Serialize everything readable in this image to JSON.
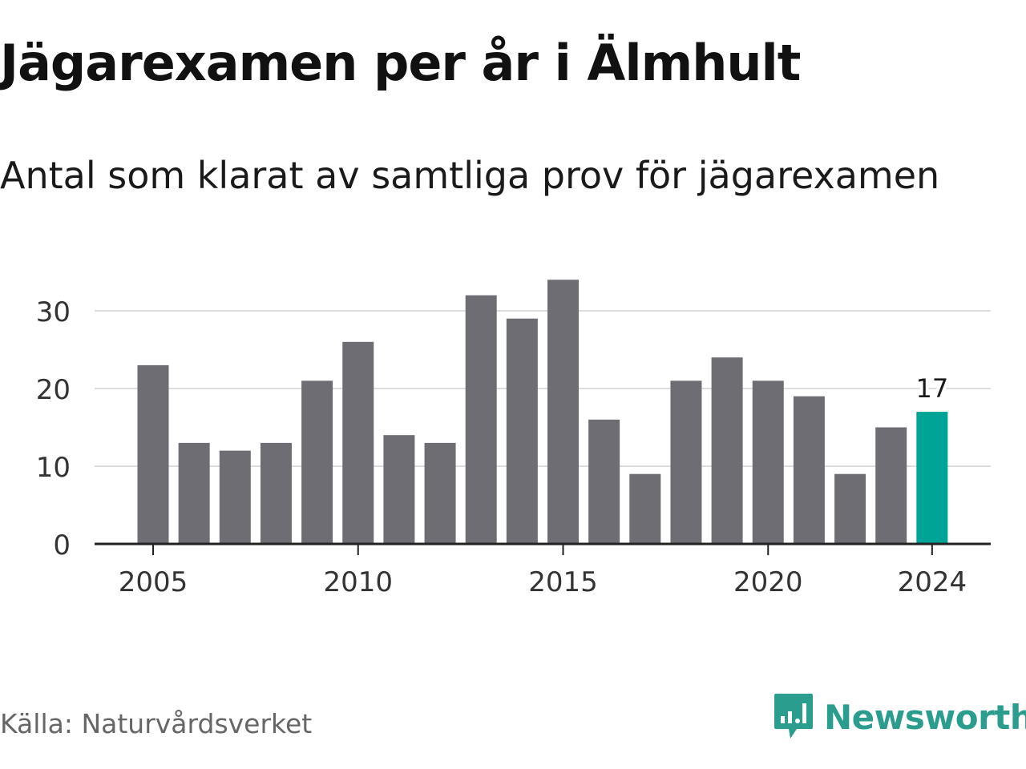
{
  "title": "Jägarexamen per år i Älmhult",
  "subtitle": "Antal som klarat av samtliga prov för jägarexamen",
  "source": "Källa: Naturvårdsverket",
  "brand": "Newsworthy",
  "colors": {
    "bar": "#6e6d74",
    "highlight": "#00a497",
    "grid": "#dddddd",
    "axis": "#222222",
    "brand": "#2a9d8f"
  },
  "chart_data": {
    "type": "bar",
    "x": [
      2005,
      2006,
      2007,
      2008,
      2009,
      2010,
      2011,
      2012,
      2013,
      2014,
      2015,
      2016,
      2017,
      2018,
      2019,
      2020,
      2021,
      2022,
      2023,
      2024
    ],
    "values": [
      23,
      13,
      12,
      13,
      21,
      26,
      14,
      13,
      32,
      29,
      34,
      16,
      9,
      21,
      24,
      21,
      19,
      9,
      15,
      17
    ],
    "xticks": [
      2005,
      2010,
      2015,
      2020,
      2024
    ],
    "yticks": [
      0,
      10,
      20,
      30
    ],
    "ylim": [
      0,
      35
    ],
    "grid": true,
    "highlight": {
      "x": 2024,
      "label": "17"
    }
  }
}
